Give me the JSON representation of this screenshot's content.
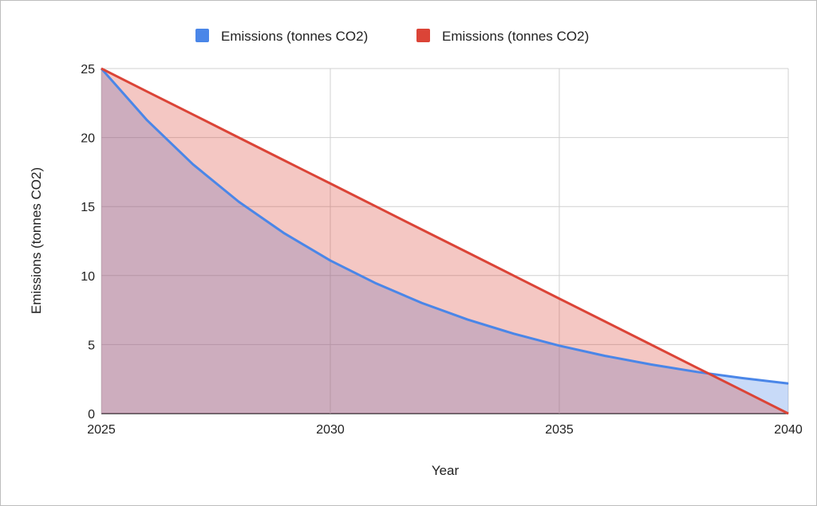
{
  "chart_data": {
    "type": "area",
    "title": "",
    "xlabel": "Year",
    "ylabel": "Emissions (tonnes CO2)",
    "x": [
      2025,
      2026,
      2027,
      2028,
      2029,
      2030,
      2031,
      2032,
      2033,
      2034,
      2035,
      2036,
      2037,
      2038,
      2039,
      2040
    ],
    "xlim": [
      2025,
      2040
    ],
    "ylim": [
      0,
      25
    ],
    "x_ticks": [
      "2025",
      "2030",
      "2035",
      "2040"
    ],
    "y_ticks": [
      "0",
      "5",
      "10",
      "15",
      "20",
      "25"
    ],
    "grid": true,
    "legend_position": "top",
    "series": [
      {
        "name": "Emissions (tonnes CO2)",
        "color": "#4a86e8",
        "values": [
          25,
          21.25,
          18.06,
          15.35,
          13.05,
          11.09,
          9.43,
          8.01,
          6.81,
          5.79,
          4.92,
          4.18,
          3.56,
          3.02,
          2.57,
          2.18
        ]
      },
      {
        "name": "Emissions (tonnes CO2)",
        "color": "#db4437",
        "values": [
          25,
          23.33,
          21.67,
          20,
          18.33,
          16.67,
          15,
          13.33,
          11.67,
          10,
          8.33,
          6.67,
          5,
          3.33,
          1.67,
          0
        ]
      }
    ]
  }
}
